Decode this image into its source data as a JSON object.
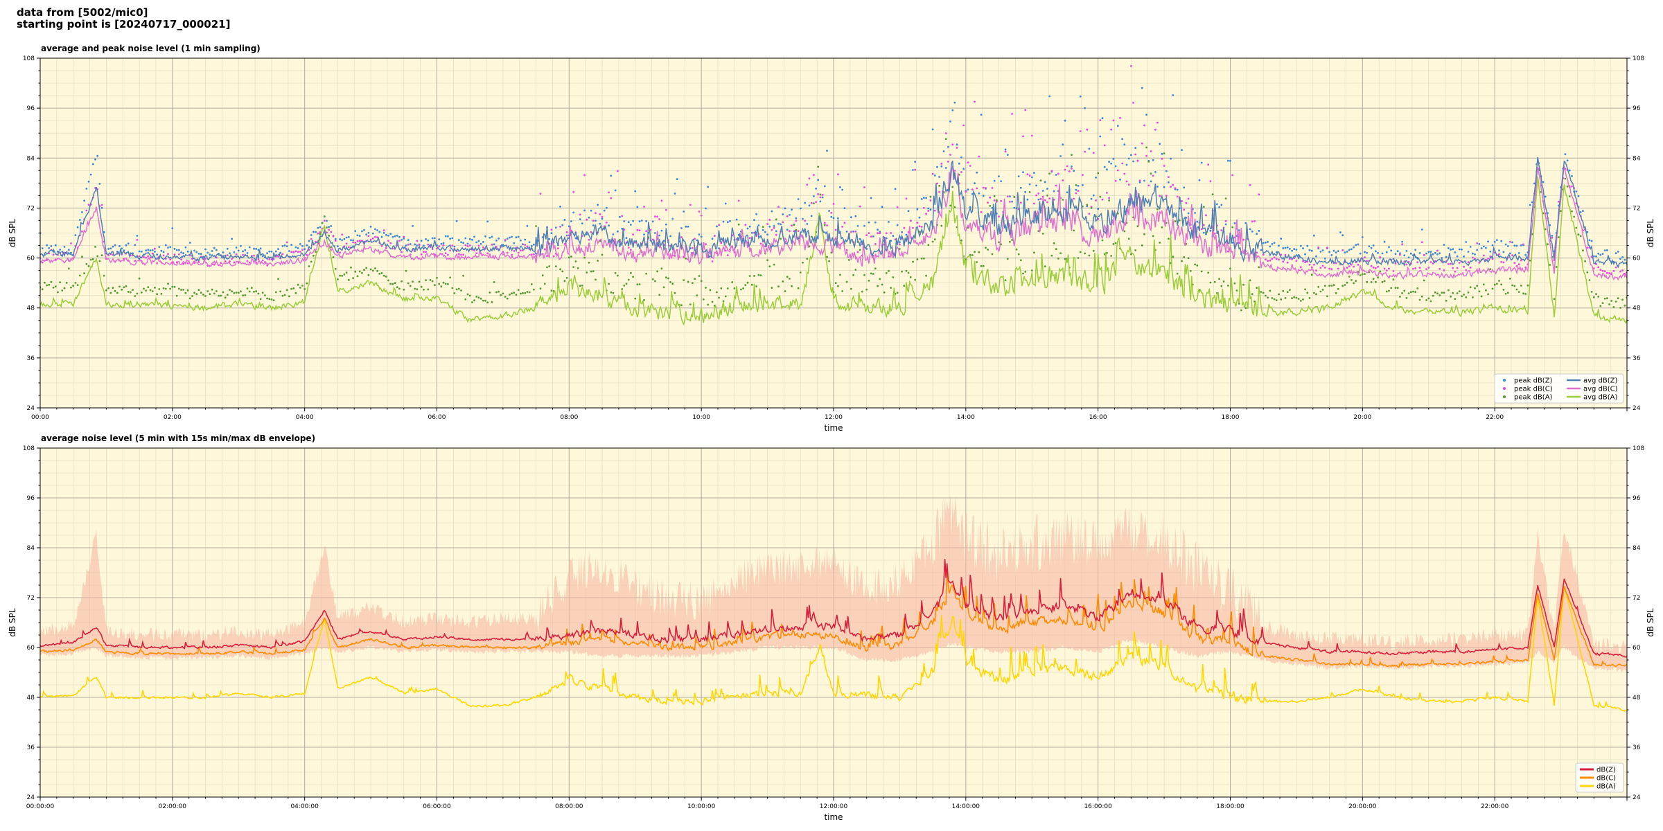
{
  "header": {
    "line1": "data from [5002/mic0]",
    "line2": "starting point is [20240717_000021]"
  },
  "colors": {
    "plot_background": "#fff7d9",
    "avg_dBZ": "#4f7fb5",
    "avg_dBC": "#e070d0",
    "avg_dBA": "#9acd3a",
    "peak_dBZ": "#3a86d6",
    "peak_dBC": "#ee44dd",
    "peak_dBA": "#559933",
    "dBZ": "#d81e3c",
    "dBC": "#ff8c00",
    "dBA": "#ffd700",
    "envelope": "#f6b9a4"
  },
  "chart_data": [
    {
      "type": "line",
      "title": "average and peak noise level (1 min sampling)",
      "xlabel": "time",
      "ylabel": "dB SPL",
      "xlim_hours": [
        0,
        24
      ],
      "ylim": [
        24,
        108
      ],
      "x_ticks": [
        "00:00",
        "02:00",
        "04:00",
        "06:00",
        "08:00",
        "10:00",
        "12:00",
        "14:00",
        "16:00",
        "18:00",
        "20:00",
        "22:00"
      ],
      "y_ticks": [
        "24",
        "36",
        "48",
        "60",
        "72",
        "84",
        "96",
        "108"
      ],
      "grid": true,
      "legend_position": "bottom-right",
      "x_hours": [
        0.0,
        0.5,
        0.85,
        1.0,
        1.5,
        2.0,
        2.5,
        3.0,
        3.5,
        4.0,
        4.3,
        4.5,
        5.0,
        5.5,
        6.0,
        6.5,
        7.0,
        7.5,
        8.0,
        8.5,
        9.0,
        9.5,
        10.0,
        10.5,
        11.0,
        11.5,
        11.8,
        12.0,
        12.5,
        13.0,
        13.5,
        13.8,
        14.0,
        14.5,
        15.0,
        15.5,
        16.0,
        16.5,
        17.0,
        17.5,
        18.0,
        18.5,
        19.0,
        19.5,
        20.0,
        20.5,
        21.0,
        21.5,
        22.0,
        22.5,
        22.65,
        22.9,
        23.05,
        23.5,
        24.0
      ],
      "series": [
        {
          "name": "avg dB(Z)",
          "kind": "line",
          "y": [
            61,
            61,
            77,
            61,
            60.5,
            60.5,
            60,
            60.5,
            60,
            61,
            66,
            62,
            64,
            62,
            62.5,
            62,
            62.5,
            62,
            64,
            66,
            63,
            63,
            62,
            63.5,
            64,
            65,
            65,
            65,
            62,
            63,
            69,
            81,
            71,
            67,
            70,
            71,
            68,
            73,
            72,
            66,
            64,
            61,
            60,
            59,
            59.5,
            59,
            59,
            59,
            60,
            60,
            84,
            60,
            84,
            59,
            58.5
          ]
        },
        {
          "name": "avg dB(C)",
          "kind": "line",
          "y": [
            59.5,
            59.5,
            72,
            59.5,
            59,
            59,
            58.5,
            59,
            58.5,
            59.5,
            64,
            60.5,
            62,
            60,
            60.5,
            60,
            60.5,
            60,
            62,
            63,
            61,
            61,
            60,
            61.5,
            62,
            63,
            63,
            63,
            60,
            61,
            66,
            79,
            68,
            64,
            67,
            68,
            65,
            70,
            69,
            63,
            61,
            58,
            57,
            56,
            56.5,
            56,
            56,
            56,
            57,
            57,
            82,
            57,
            82,
            56,
            55.5
          ]
        },
        {
          "name": "avg dB(A)",
          "kind": "line",
          "y": [
            49,
            49,
            60,
            49,
            48.5,
            48.5,
            48,
            49,
            48,
            49.5,
            68,
            52,
            54,
            50,
            50.5,
            45,
            46,
            48,
            53,
            50,
            48,
            47,
            46,
            48,
            49,
            49,
            70,
            49,
            48.5,
            48,
            55,
            73,
            58,
            53,
            55,
            56,
            53,
            59,
            56,
            50,
            48,
            47,
            47,
            48,
            52,
            48,
            47,
            47,
            48,
            47,
            80,
            46,
            78,
            46,
            45
          ]
        },
        {
          "name": "peak dB(Z)",
          "kind": "scatter",
          "y": [
            62,
            62,
            86,
            62,
            62,
            62,
            61,
            62,
            61,
            63,
            70,
            64,
            67,
            64,
            64,
            64,
            64,
            64,
            67,
            70,
            66,
            66,
            64,
            66,
            68,
            69,
            77,
            68,
            65,
            66,
            74,
            90,
            77,
            73,
            78,
            80,
            75,
            84,
            81,
            71,
            67,
            63,
            62,
            61,
            62,
            61,
            61,
            61,
            63,
            62,
            85,
            62,
            85,
            61,
            60
          ]
        },
        {
          "name": "peak dB(C)",
          "kind": "scatter",
          "y": [
            60,
            60,
            78,
            60,
            60,
            60,
            59,
            60,
            59,
            61,
            68,
            62,
            65,
            62,
            62,
            62,
            62,
            62,
            65,
            68,
            64,
            64,
            62,
            64,
            66,
            67,
            74,
            66,
            63,
            64,
            72,
            88,
            75,
            71,
            76,
            78,
            73,
            83,
            79,
            69,
            65,
            60,
            59,
            58,
            59,
            58,
            58,
            58,
            60,
            59,
            83,
            59,
            83,
            58,
            57
          ]
        },
        {
          "name": "peak dB(A)",
          "kind": "scatter",
          "y": [
            53,
            53,
            62,
            53,
            52,
            52,
            51,
            52,
            51,
            53,
            70,
            55,
            57,
            53,
            54,
            50,
            51,
            53,
            57,
            56,
            53,
            52,
            51,
            53,
            55,
            55,
            72,
            55,
            54,
            54,
            60,
            76,
            63,
            59,
            62,
            63,
            60,
            66,
            63,
            56,
            53,
            51,
            51,
            52,
            56,
            52,
            51,
            51,
            53,
            52,
            82,
            51,
            80,
            50,
            49
          ]
        }
      ]
    },
    {
      "type": "area",
      "title": "average noise level (5 min with 15s min/max dB envelope)",
      "xlabel": "time",
      "ylabel": "dB SPL",
      "xlim_hours": [
        0,
        24
      ],
      "ylim": [
        24,
        108
      ],
      "x_ticks": [
        "00:00:00",
        "02:00:00",
        "04:00:00",
        "06:00:00",
        "08:00:00",
        "10:00:00",
        "12:00:00",
        "14:00:00",
        "16:00:00",
        "18:00:00",
        "20:00:00",
        "22:00:00"
      ],
      "y_ticks": [
        "24",
        "36",
        "48",
        "60",
        "72",
        "84",
        "96",
        "108"
      ],
      "grid": true,
      "legend_position": "bottom-right",
      "x_hours": [
        0.0,
        0.5,
        0.85,
        1.0,
        1.5,
        2.0,
        2.5,
        3.0,
        3.5,
        4.0,
        4.3,
        4.5,
        5.0,
        5.5,
        6.0,
        6.5,
        7.0,
        7.5,
        8.0,
        8.5,
        9.0,
        9.5,
        10.0,
        10.5,
        11.0,
        11.5,
        11.8,
        12.0,
        12.5,
        13.0,
        13.5,
        13.8,
        14.0,
        14.5,
        15.0,
        15.5,
        16.0,
        16.5,
        17.0,
        17.5,
        18.0,
        18.5,
        19.0,
        19.5,
        20.0,
        20.5,
        21.0,
        21.5,
        22.0,
        22.5,
        22.65,
        22.9,
        23.05,
        23.5,
        24.0
      ],
      "series": [
        {
          "name": "dB(Z)",
          "kind": "line",
          "y": [
            60.5,
            61,
            65,
            60.5,
            60,
            60,
            60,
            60.5,
            60,
            61.5,
            69,
            62,
            64,
            62,
            62.5,
            62,
            62,
            62,
            63,
            64,
            63,
            62,
            62,
            63,
            64.5,
            65,
            65,
            65,
            62,
            63,
            68,
            76,
            70,
            67,
            69,
            70,
            67,
            73,
            71,
            65,
            64,
            61,
            60,
            59,
            59,
            58.5,
            59,
            59,
            59.5,
            60,
            75,
            60,
            76.5,
            58.5,
            58
          ]
        },
        {
          "name": "dB(C)",
          "kind": "line",
          "y": [
            59,
            59.5,
            62,
            59,
            58.5,
            58.5,
            58.5,
            59,
            58.5,
            59.5,
            67,
            60,
            62,
            60,
            60.5,
            60,
            60,
            60,
            61,
            62,
            61,
            60,
            60,
            61,
            62.5,
            63,
            63,
            63,
            59.5,
            60.5,
            66,
            74,
            67,
            64.5,
            66,
            67,
            64,
            71,
            68,
            62,
            61,
            58,
            57,
            56,
            56,
            55.5,
            56,
            56,
            56.5,
            57,
            73,
            57,
            74.5,
            56,
            55.5
          ]
        },
        {
          "name": "dB(A)",
          "kind": "line",
          "y": [
            48,
            48.5,
            53,
            48,
            48,
            48,
            48,
            49,
            48,
            49,
            67,
            50,
            53,
            49,
            50,
            46,
            46,
            48,
            52,
            50,
            48,
            47,
            47,
            48,
            49,
            49,
            60,
            49,
            48.5,
            48,
            54,
            67,
            56,
            52,
            54,
            55,
            53,
            58,
            55,
            50,
            48,
            47,
            47,
            48,
            50,
            48,
            47,
            47,
            48,
            47,
            72,
            46,
            75,
            46,
            45
          ]
        },
        {
          "name": "envelope max",
          "kind": "band_max",
          "y": [
            64,
            65,
            87,
            64,
            63,
            63,
            63,
            64,
            63,
            66,
            84,
            67,
            70,
            66,
            67,
            66,
            67,
            67,
            77,
            80,
            74,
            72,
            71,
            76,
            79,
            80,
            80,
            80,
            74,
            76,
            86,
            93,
            86,
            82,
            85,
            87,
            84,
            88,
            86,
            79,
            74,
            65,
            63,
            62,
            62,
            61,
            62,
            62,
            63,
            63,
            87,
            63,
            89,
            61,
            60
          ]
        },
        {
          "name": "envelope min",
          "kind": "band_min",
          "y": [
            58,
            58.5,
            60,
            58,
            57.5,
            57.5,
            57.5,
            58,
            57.5,
            58.5,
            60,
            59,
            60,
            59,
            59.5,
            59,
            59,
            59,
            59,
            58,
            58,
            58,
            58,
            59,
            60,
            60,
            60,
            60,
            57,
            57,
            59,
            61,
            60,
            59,
            59,
            60,
            59,
            62,
            60,
            58,
            59,
            57,
            56,
            55,
            55.5,
            55,
            55.5,
            55.5,
            56,
            56.5,
            59,
            56.5,
            60,
            55,
            54.5
          ]
        }
      ]
    }
  ]
}
